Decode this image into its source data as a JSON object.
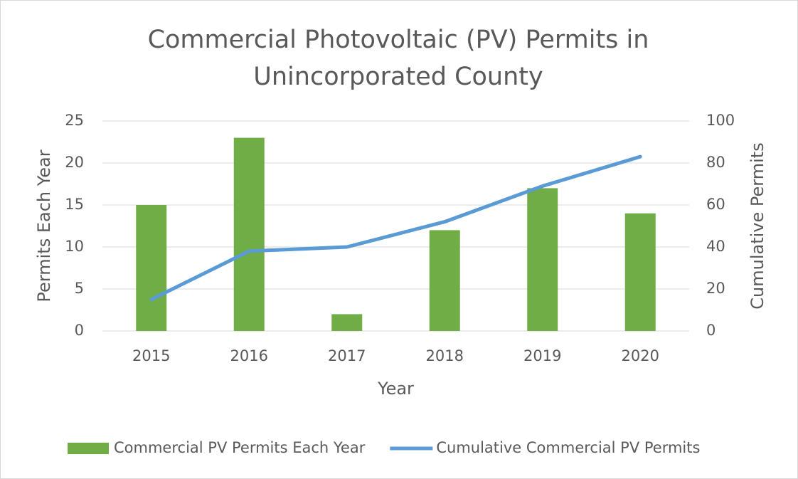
{
  "chart_data": {
    "type": "bar",
    "title": "Commercial Photovoltaic (PV) Permits in Unincorporated County",
    "x_label": "Year",
    "y_label": "Permits Each Year",
    "y2_label": "Cumulative Permits",
    "categories": [
      "2015",
      "2016",
      "2017",
      "2018",
      "2019",
      "2020"
    ],
    "series": [
      {
        "name": "Commercial PV Permits Each Year",
        "type": "bar",
        "color": "#70ad47",
        "values": [
          15,
          23,
          2,
          12,
          17,
          14
        ]
      },
      {
        "name": "Cumulative Commercial PV Permits",
        "type": "line",
        "axis": "y2",
        "color": "#5b9bd5",
        "values": [
          15,
          38,
          40,
          52,
          69,
          83
        ]
      }
    ],
    "ylim": [
      0,
      25
    ],
    "yticks": [
      0,
      5,
      10,
      15,
      20,
      25
    ],
    "y2lim": [
      0,
      100
    ],
    "y2ticks": [
      0,
      20,
      40,
      60,
      80,
      100
    ],
    "grid": true,
    "legend": "bottom"
  }
}
